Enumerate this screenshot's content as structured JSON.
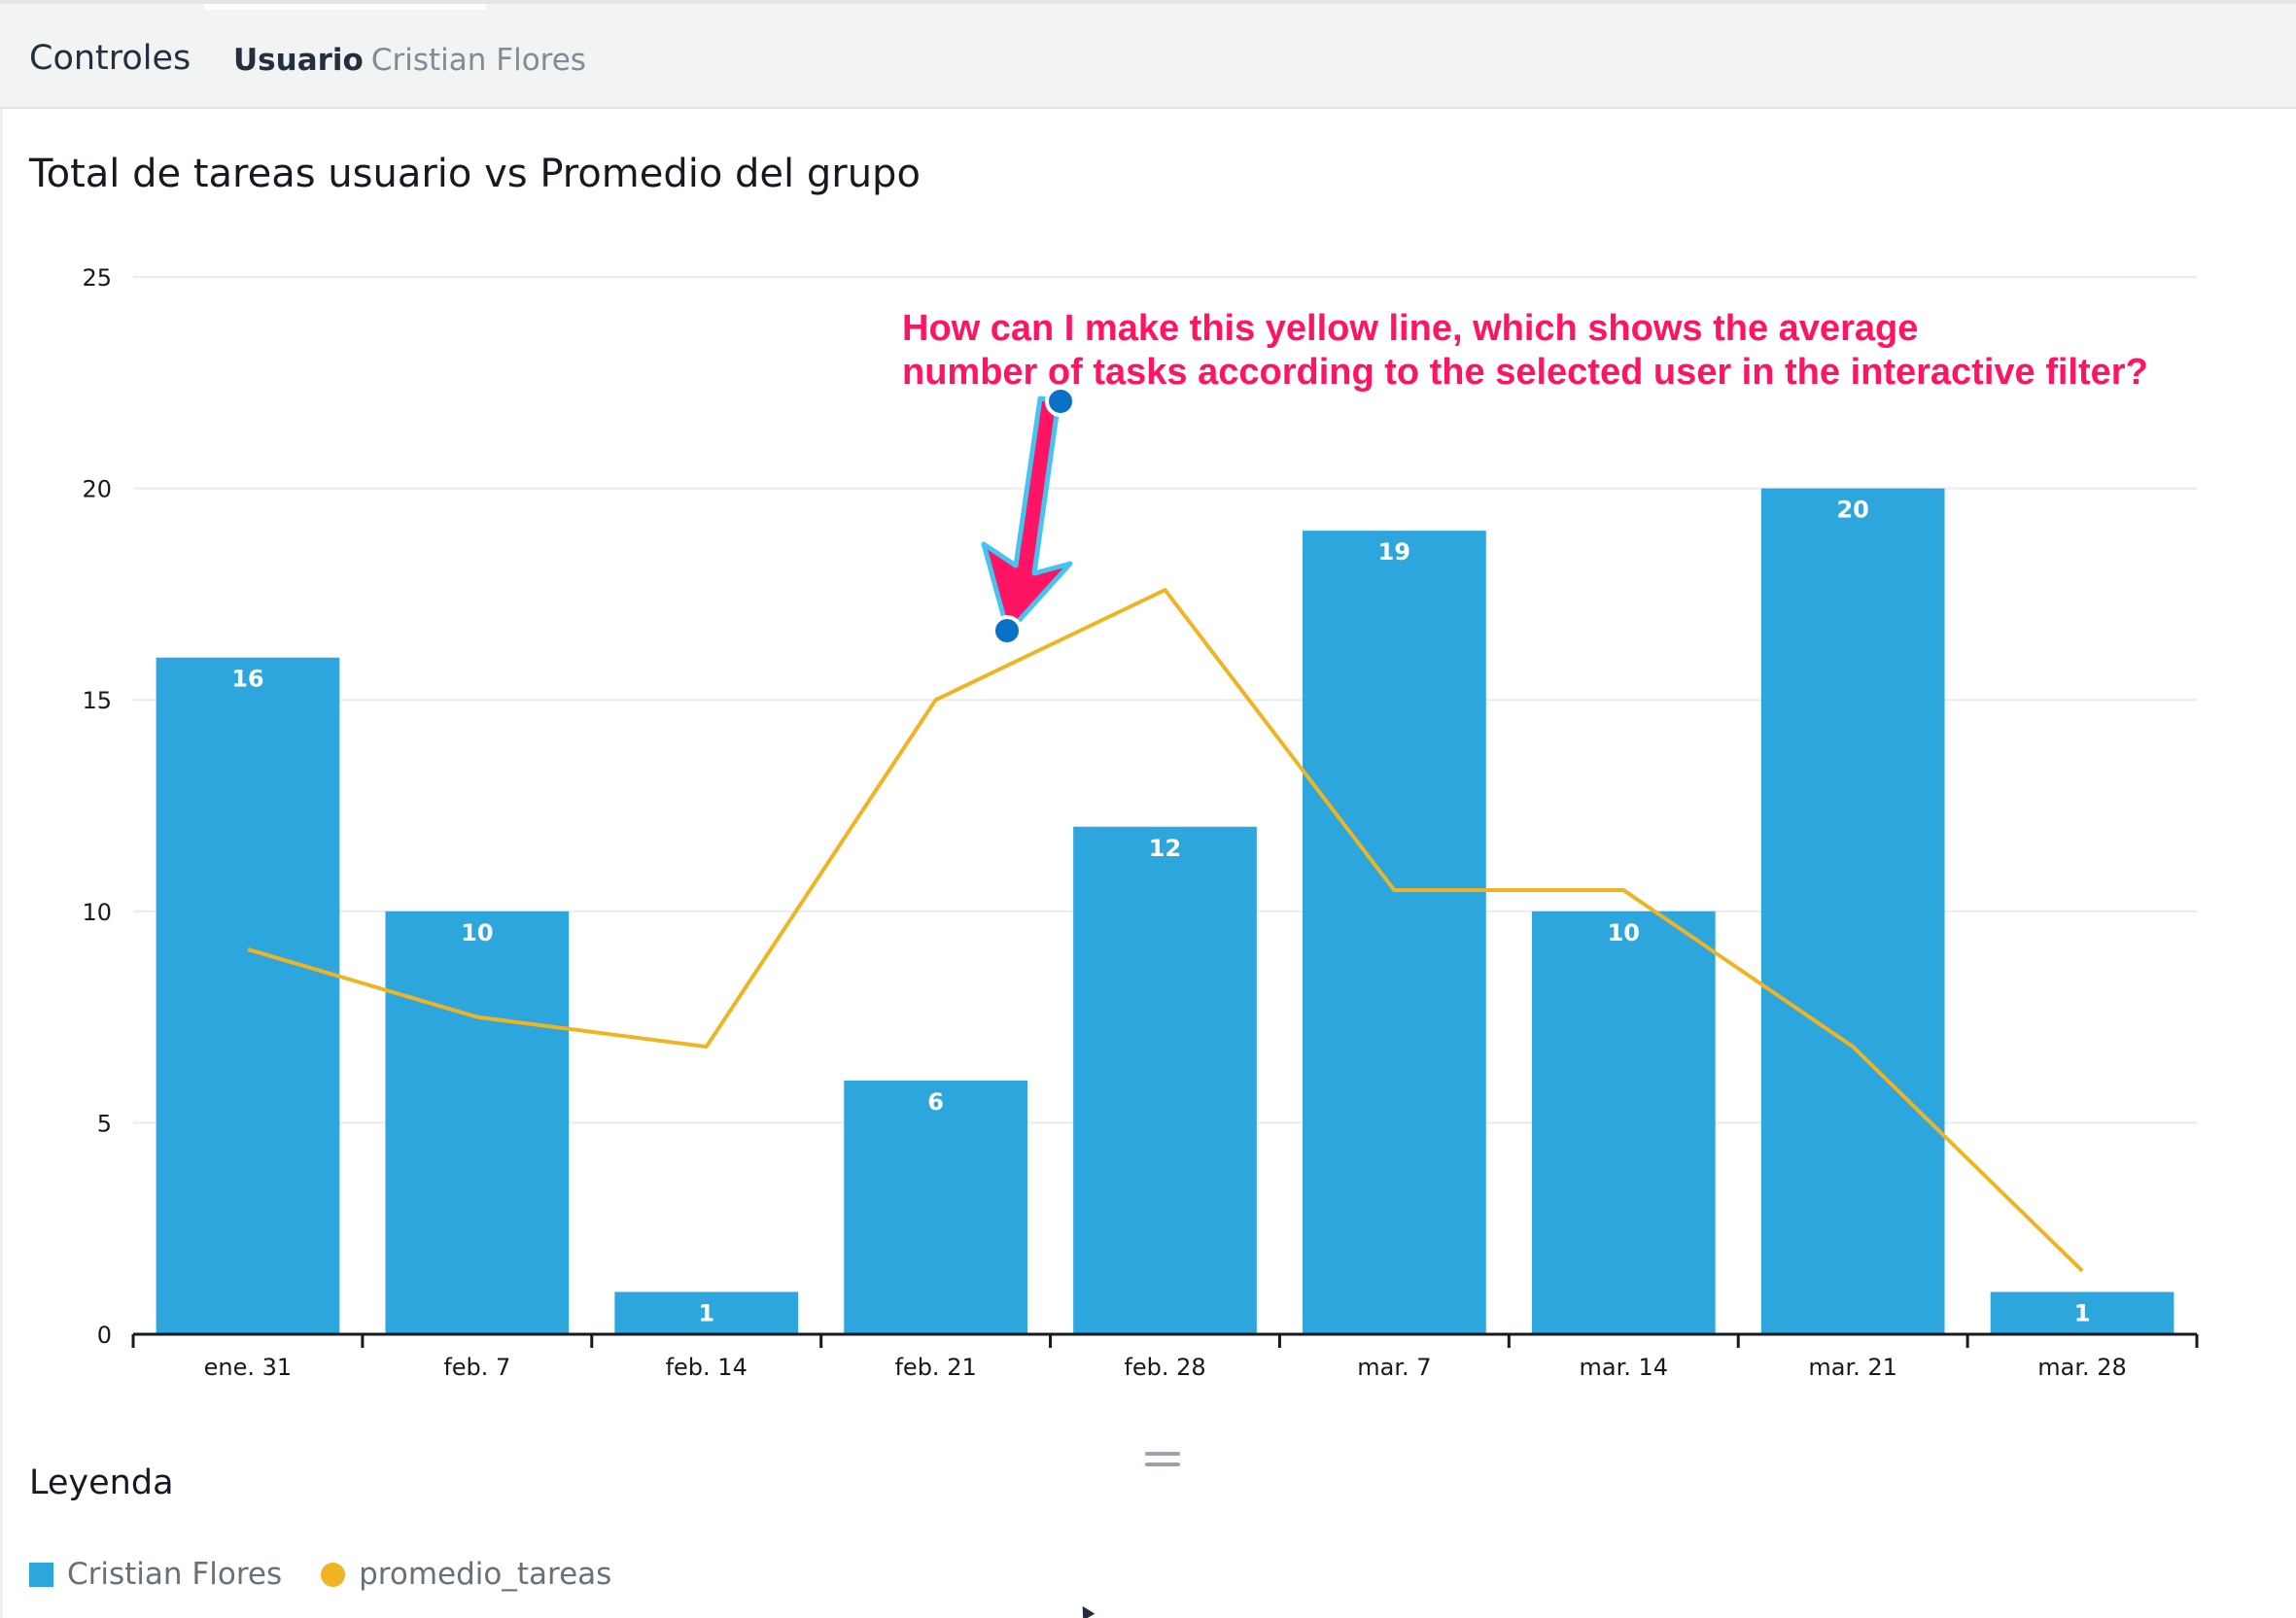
{
  "controls": {
    "title": "Controles",
    "filter_label": "Usuario",
    "filter_value": "Cristian Flores"
  },
  "colors": {
    "bar": "#2ca6dd",
    "line": "#f0b423",
    "annotation": "#ff1464",
    "annotation_outline": "#44c4f0",
    "marker": "#0a72c4",
    "grid": "#e9ebed",
    "axis": "#16191f"
  },
  "chart_data": {
    "type": "bar",
    "title": "Total de tareas usuario vs Promedio del grupo",
    "xlabel": "",
    "ylabel": "",
    "categories": [
      "ene. 31",
      "feb. 7",
      "feb. 14",
      "feb. 21",
      "feb. 28",
      "mar. 7",
      "mar. 14",
      "mar. 21",
      "mar. 28"
    ],
    "ylim": [
      0,
      25
    ],
    "yticks": [
      0,
      5,
      10,
      15,
      20,
      25
    ],
    "grid": true,
    "series": [
      {
        "name": "Cristian Flores",
        "kind": "bar",
        "values": [
          16,
          10,
          1,
          6,
          12,
          19,
          10,
          20,
          1
        ],
        "data_labels": true
      },
      {
        "name": "promedio_tareas",
        "kind": "line",
        "values": [
          9.1,
          7.5,
          6.8,
          15.0,
          17.6,
          10.5,
          10.5,
          6.8,
          1.5
        ]
      }
    ],
    "legend_title": "Leyenda",
    "legend_position": "bottom-left",
    "annotation": {
      "lines": [
        "How can I make this yellow line, which shows the average",
        "number of tasks according to the selected user in the interactive filter?"
      ]
    }
  }
}
